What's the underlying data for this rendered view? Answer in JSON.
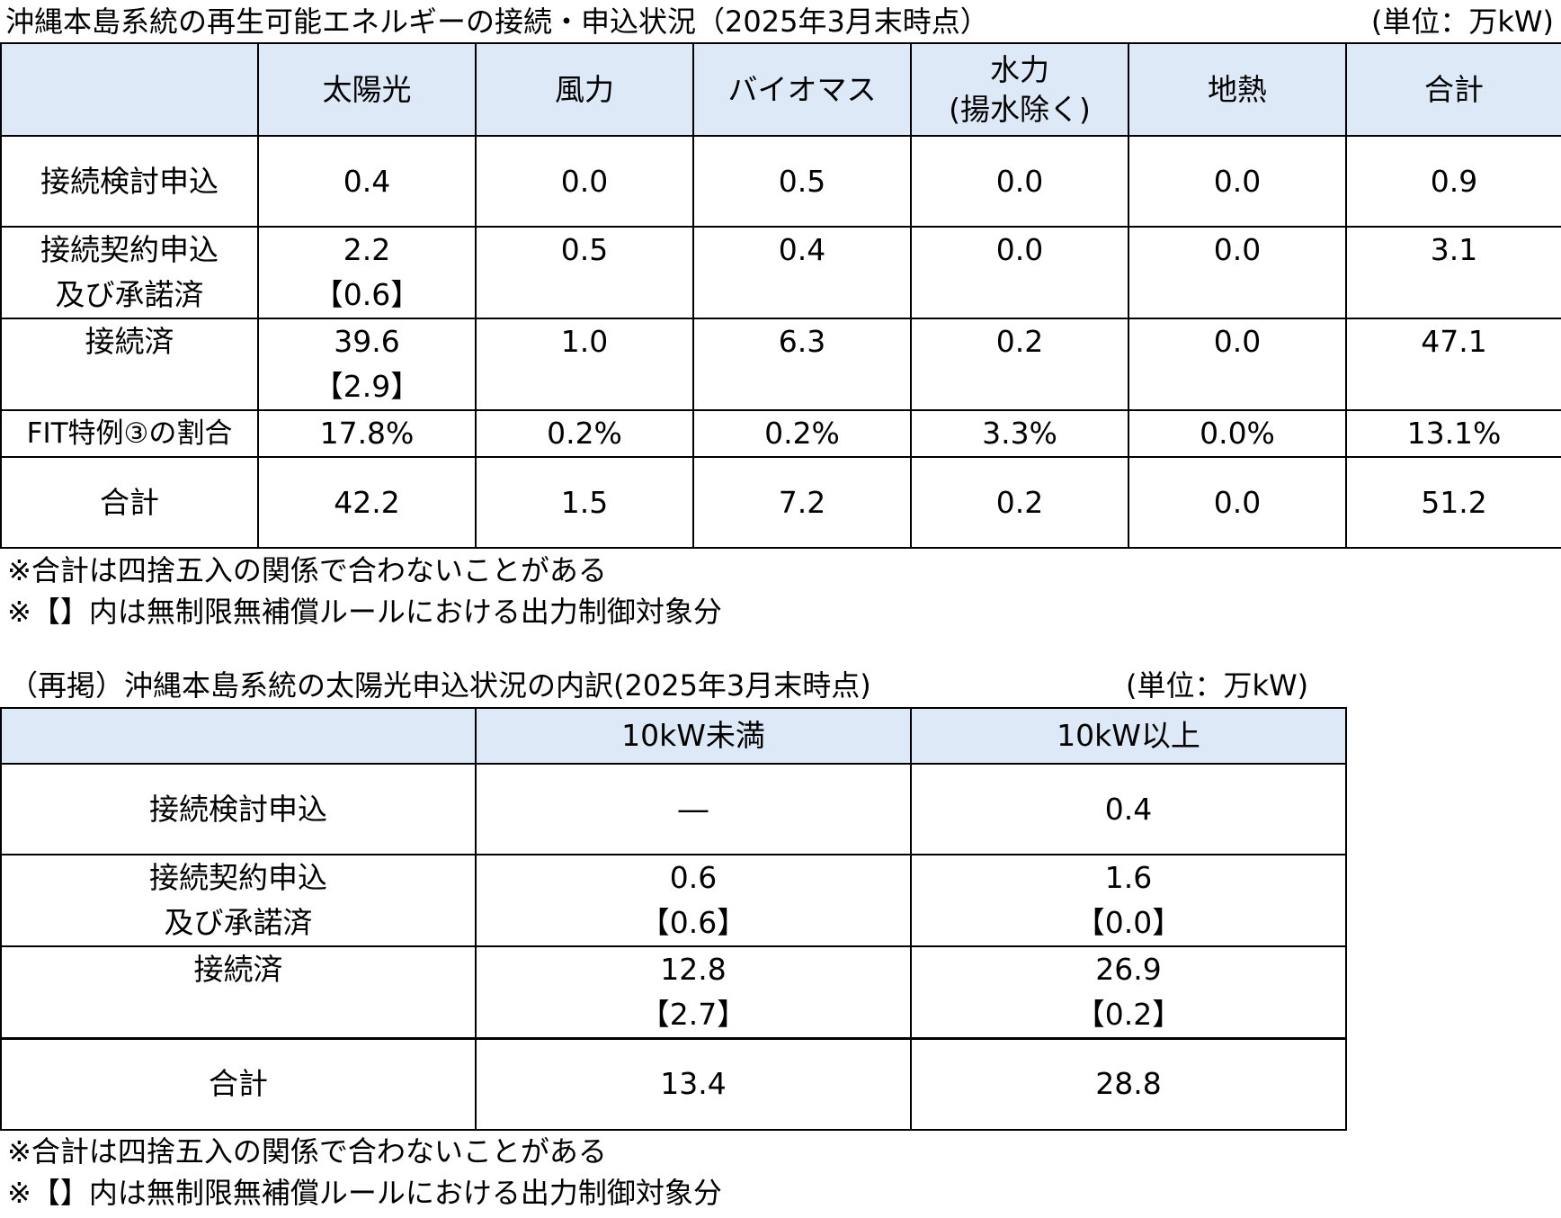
{
  "table1": {
    "title": "沖縄本島系統の再生可能エネルギーの接続・申込状況（2025年3月末時点）",
    "unit": "(単位：万kW)",
    "headers": [
      "",
      "太陽光",
      "風力",
      "バイオマス",
      "水力\n(揚水除く)",
      "地熱",
      "合計"
    ],
    "headers_hydro_line1": "水力",
    "headers_hydro_line2": "(揚水除く)",
    "rows": [
      {
        "label": "接続検討申込",
        "cells": [
          "0.4",
          "0.0",
          "0.5",
          "0.0",
          "0.0",
          "0.9"
        ]
      },
      {
        "label_line1": "接続契約申込",
        "label_line2": "及び承諾済",
        "cells": [
          "2.2",
          "0.5",
          "0.4",
          "0.0",
          "0.0",
          "3.1"
        ],
        "solar_bracket": "【0.6】"
      },
      {
        "label": "接続済",
        "cells": [
          "39.6",
          "1.0",
          "6.3",
          "0.2",
          "0.0",
          "47.1"
        ],
        "solar_bracket": "【2.9】"
      },
      {
        "label": "FIT特例③の割合",
        "cells": [
          "17.8%",
          "0.2%",
          "0.2%",
          "3.3%",
          "0.0%",
          "13.1%"
        ]
      },
      {
        "label": "合計",
        "cells": [
          "42.2",
          "1.5",
          "7.2",
          "0.2",
          "0.0",
          "51.2"
        ]
      }
    ],
    "notes": [
      "※合計は四捨五入の関係で合わないことがある",
      "※【】内は無制限無補償ルールにおける出力制御対象分"
    ]
  },
  "table2": {
    "title": "（再掲）沖縄本島系統の太陽光申込状況の内訳(2025年3月末時点)",
    "unit": "(単位：万kW)",
    "headers": [
      "",
      "10kW未満",
      "10kW以上"
    ],
    "rows": [
      {
        "label": "接続検討申込",
        "cells": [
          "―",
          "0.4"
        ]
      },
      {
        "label_line1": "接続契約申込",
        "label_line2": "及び承諾済",
        "cells": [
          "0.6",
          "1.6"
        ],
        "brackets": [
          "【0.6】",
          "【0.0】"
        ]
      },
      {
        "label": "接続済",
        "cells": [
          "12.8",
          "26.9"
        ],
        "brackets": [
          "【2.7】",
          "【0.2】"
        ]
      },
      {
        "label": "合計",
        "cells": [
          "13.4",
          "28.8"
        ]
      }
    ],
    "notes": [
      "※合計は四捨五入の関係で合わないことがある",
      "※【】内は無制限無補償ルールにおける出力制御対象分"
    ]
  }
}
